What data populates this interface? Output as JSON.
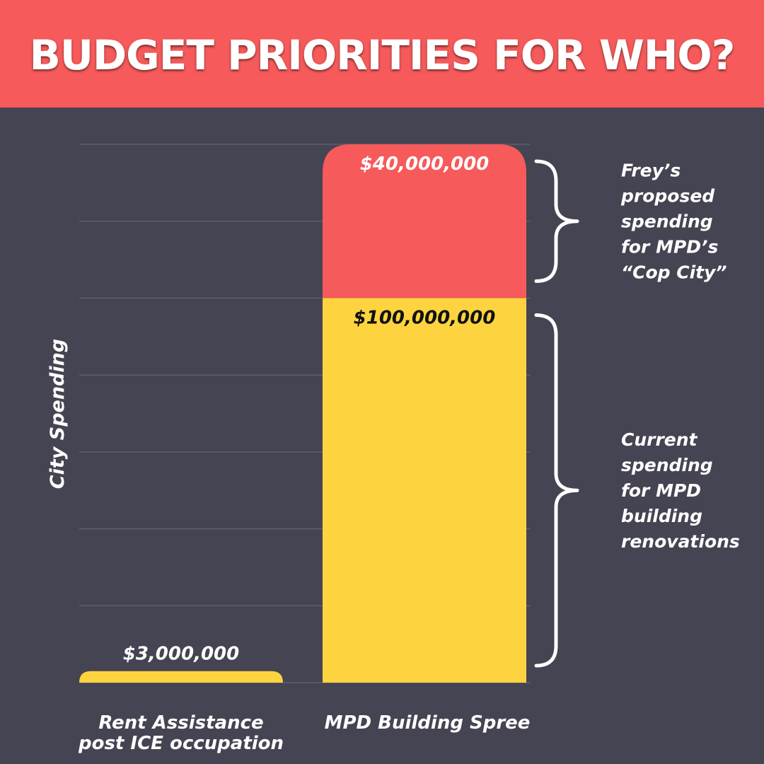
{
  "title": "BUDGET PRIORITIES FOR WHO?",
  "colors": {
    "background": "#454452",
    "header": "#f65a5a",
    "proposed": "#f65a5a",
    "current": "#fdd43f",
    "text": "#ffffff",
    "value_on_yellow": "#111111"
  },
  "chart_data": {
    "type": "bar",
    "stacked": true,
    "ylabel": "City Spending",
    "xlabel": "",
    "grid": true,
    "categories": [
      "Rent Assistance post ICE occupation",
      "MPD Building Spree"
    ],
    "category_labels": [
      [
        "Rent Assistance",
        "post ICE occupation"
      ],
      [
        "MPD Building Spree"
      ]
    ],
    "series": [
      {
        "values": [
          3000000,
          100000000
        ],
        "color": "#fdd43f"
      },
      {
        "values": [
          0,
          40000000
        ],
        "color": "#f65a5a"
      }
    ],
    "data_labels": [
      {
        "category": 0,
        "series": 0,
        "text": "$3,000,000"
      },
      {
        "category": 1,
        "series": 0,
        "text": "$100,000,000"
      },
      {
        "category": 1,
        "series": 1,
        "text": "$40,000,000"
      }
    ],
    "ylim": [
      0,
      140000000
    ],
    "annotations": [
      {
        "series": 1,
        "lines": [
          "Frey’s",
          "proposed",
          "spending",
          "for MPD’s",
          "“Cop City”"
        ]
      },
      {
        "series": 0,
        "lines": [
          "Current",
          "spending",
          "for MPD",
          "building",
          "renovations"
        ]
      }
    ]
  }
}
